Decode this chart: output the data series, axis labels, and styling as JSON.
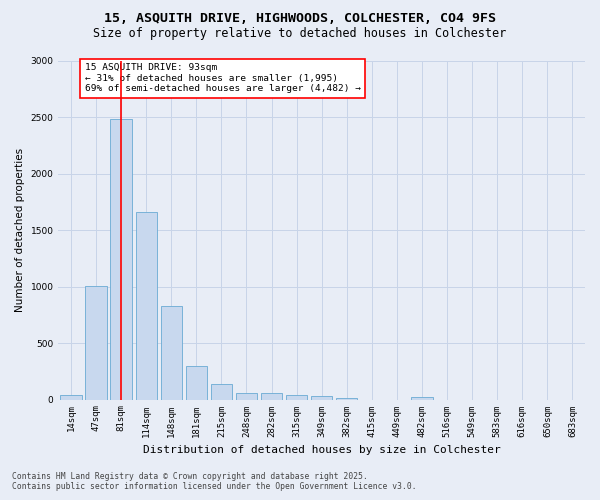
{
  "title_line1": "15, ASQUITH DRIVE, HIGHWOODS, COLCHESTER, CO4 9FS",
  "title_line2": "Size of property relative to detached houses in Colchester",
  "xlabel": "Distribution of detached houses by size in Colchester",
  "ylabel": "Number of detached properties",
  "footer_line1": "Contains HM Land Registry data © Crown copyright and database right 2025.",
  "footer_line2": "Contains public sector information licensed under the Open Government Licence v3.0.",
  "categories": [
    "14sqm",
    "47sqm",
    "81sqm",
    "114sqm",
    "148sqm",
    "181sqm",
    "215sqm",
    "248sqm",
    "282sqm",
    "315sqm",
    "349sqm",
    "382sqm",
    "415sqm",
    "449sqm",
    "482sqm",
    "516sqm",
    "549sqm",
    "583sqm",
    "616sqm",
    "650sqm",
    "683sqm"
  ],
  "values": [
    40,
    1005,
    2490,
    1665,
    830,
    295,
    135,
    60,
    55,
    40,
    30,
    10,
    0,
    0,
    25,
    0,
    0,
    0,
    0,
    0,
    0
  ],
  "bar_color": "#c8d8ee",
  "bar_edge_color": "#6aaad4",
  "grid_color": "#c8d4e8",
  "background_color": "#e8edf6",
  "vline_x": 2,
  "vline_color": "red",
  "annotation_text": "15 ASQUITH DRIVE: 93sqm\n← 31% of detached houses are smaller (1,995)\n69% of semi-detached houses are larger (4,482) →",
  "annotation_box_facecolor": "white",
  "annotation_box_edgecolor": "red",
  "ylim": [
    0,
    3000
  ],
  "yticks": [
    0,
    500,
    1000,
    1500,
    2000,
    2500,
    3000
  ],
  "title_fontsize": 9.5,
  "subtitle_fontsize": 8.5,
  "ylabel_fontsize": 7.5,
  "xlabel_fontsize": 8,
  "tick_fontsize": 6.5,
  "annot_fontsize": 6.8,
  "footer_fontsize": 5.8
}
